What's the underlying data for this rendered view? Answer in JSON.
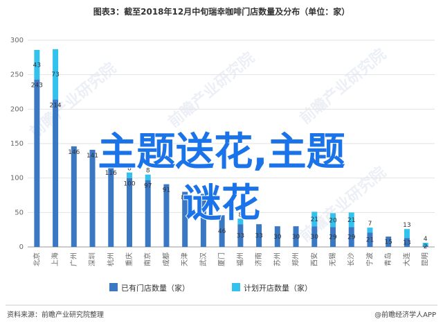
{
  "chart_data": {
    "type": "bar",
    "title": "图表3：截至2018年12月中旬瑞幸咖啡门店数量及分布（单位：家）",
    "categories": [
      "北京",
      "上海",
      "广州",
      "深圳",
      "杭州",
      "重庆",
      "南京",
      "成都",
      "天津",
      "武汉",
      "厦门",
      "福州",
      "济南",
      "苏州",
      "郑州",
      "西安",
      "无锡",
      "长沙",
      "宁波",
      "青岛",
      "大连",
      "昆明"
    ],
    "series": [
      {
        "name": "已有门店数量（家）",
        "values": [
          243,
          214,
          146,
          141,
          116,
          100,
          97,
          91,
          80,
          77,
          46,
          33,
          33,
          30,
          30,
          30,
          29,
          29,
          21,
          15,
          13,
          2
        ],
        "color": "#3a78c4"
      },
      {
        "name": "计划开店数量（家）",
        "values": [
          43,
          73,
          0,
          0,
          0,
          8,
          8,
          0,
          0,
          0,
          0,
          8,
          0,
          0,
          0,
          21,
          20,
          21,
          7,
          0,
          13,
          4
        ],
        "color": "#33c2ee"
      }
    ],
    "bar_labels": [
      [
        "243",
        "214",
        "146",
        "141",
        "116",
        "100",
        "97",
        "91",
        "80",
        "77",
        "46",
        "33",
        "33",
        "30",
        "30",
        "30",
        "29",
        "29",
        "21",
        "15",
        "13",
        "2"
      ],
      [
        "43",
        "73",
        "",
        "",
        "",
        "8",
        "8",
        "",
        "",
        "",
        "",
        "8",
        "",
        "",
        "",
        "21",
        "20",
        "21",
        "7",
        "",
        "13",
        "4"
      ]
    ],
    "ylim": [
      0,
      300
    ],
    "yticks": [
      0,
      50,
      100,
      150,
      200,
      250,
      300
    ],
    "stacked": true,
    "grid": true,
    "legend_position": "bottom"
  },
  "overlay": {
    "line1": "主题送花,主题",
    "line2": "谜花"
  },
  "watermark": "前瞻产业研究院",
  "footer": {
    "source": "资料来源：前瞻产业研究院整理",
    "brand": "@前瞻经济学人APP"
  }
}
